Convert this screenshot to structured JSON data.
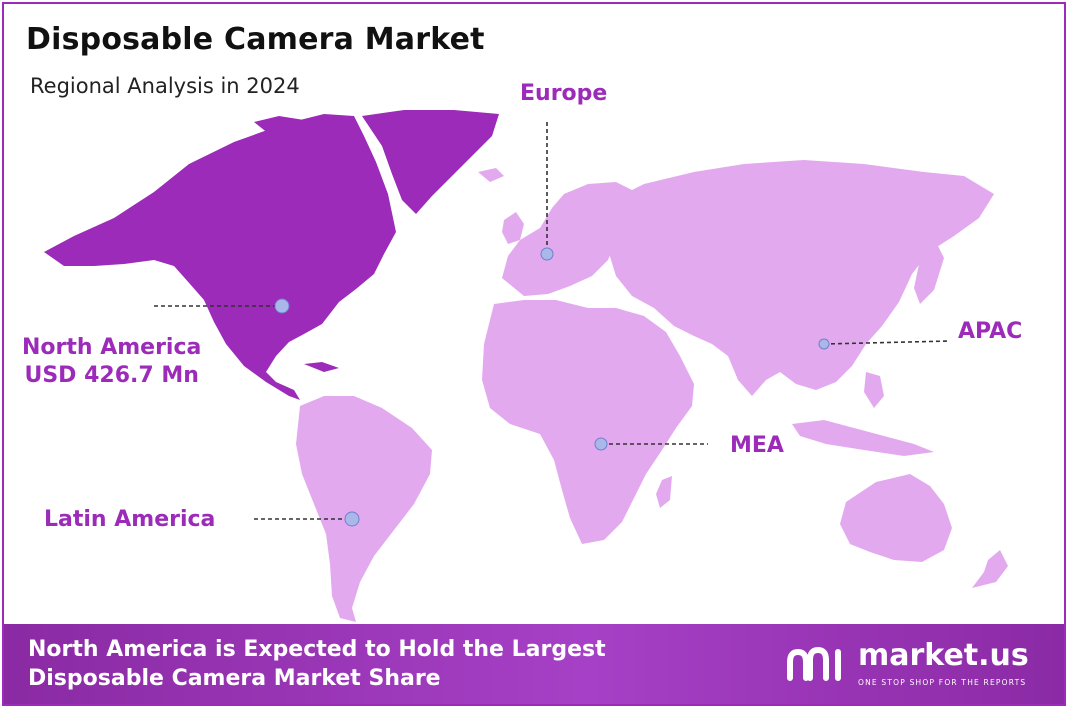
{
  "title": "Disposable Camera Market",
  "subtitle": "Regional Analysis in 2024",
  "regions": {
    "europe": "Europe",
    "north_america": "North America",
    "north_america_value": "USD 426.7 Mn",
    "latin_america": "Latin America",
    "mea": "MEA",
    "apac": "APAC"
  },
  "highlight_region": "North America",
  "colors": {
    "highlight": "#9b2bb8",
    "land": "#e3a9ef",
    "label": "#9b2bb8",
    "marker": "#a9b8e8"
  },
  "footer": {
    "line1": "North America is Expected to Hold the Largest",
    "line2": "Disposable Camera Market Share"
  },
  "brand": {
    "name": "market.us",
    "tagline": "ONE STOP SHOP FOR THE REPORTS",
    "logo_icon": "market-us-logo-icon"
  }
}
